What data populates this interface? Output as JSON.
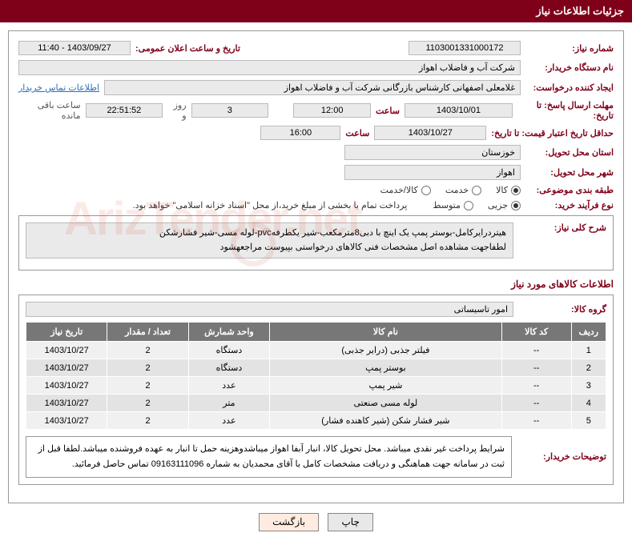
{
  "header": {
    "title": "جزئیات اطلاعات نیاز"
  },
  "fields": {
    "need_number_label": "شماره نیاز:",
    "need_number": "1103001331000172",
    "announce_date_label": "تاریخ و ساعت اعلان عمومی:",
    "announce_date": "1403/09/27 - 11:40",
    "buyer_org_label": "نام دستگاه خریدار:",
    "buyer_org": "شرکت آب و فاضلاب اهواز",
    "requester_label": "ایجاد کننده درخواست:",
    "requester": "غلامعلی اصفهانی کارشناس بازرگانی شرکت آب و فاضلاب اهواز",
    "buyer_contact_link": "اطلاعات تماس خریدار",
    "reply_deadline_label": "مهلت ارسال پاسخ: تا تاریخ:",
    "reply_deadline_date": "1403/10/01",
    "hour_label": "ساعت",
    "reply_deadline_time": "12:00",
    "countdown_days": "3",
    "days_and": "روز و",
    "countdown_time": "22:51:52",
    "remaining_label": "ساعت باقی مانده",
    "price_validity_label": "حداقل تاریخ اعتبار قیمت: تا تاریخ:",
    "price_validity_date": "1403/10/27",
    "price_validity_time": "16:00",
    "province_label": "استان محل تحویل:",
    "province": "خوزستان",
    "city_label": "شهر محل تحویل:",
    "city": "اهواز",
    "category_label": "طبقه بندی موضوعی:",
    "process_label": "نوع فرآیند خرید:",
    "payment_note": "پرداخت تمام یا بخشی از مبلغ خرید،از محل \"اسناد خزانه اسلامی\" خواهد بود.",
    "general_desc_label": "شرح کلی نیاز:",
    "general_desc_line1": "هیتردرایرکامل-بوستر پمپ یک اینچ با دبی8مترمکعب-شیر یکطرفهpvc-لوله مسی-شیر فشارشکن",
    "general_desc_line2": "لطفاجهت مشاهده اصل مشخصات فنی کالاهای درخواستی بپیوست مراجعهشود",
    "items_section": "اطلاعات کالاهای مورد نیاز",
    "group_label": "گروه کالا:",
    "group_value": "امور تاسیساتی",
    "buyer_notes_label": "توضیحات خریدار:",
    "buyer_notes": "شرایط پرداخت غیر نقدی میباشد. محل تحویل کالا، انبار آبفا اهواز میباشدوهزینه حمل تا انبار به عهده فروشنده میباشد.لطفا قبل از ثبت در سامانه جهت هماهنگی و دریافت مشخصات کامل با آقای  محمدیان به شماره 09163111096 تماس حاصل فرمائید."
  },
  "radios": {
    "category": {
      "options": [
        "کالا",
        "خدمت",
        "کالا/خدمت"
      ],
      "selected_index": 0
    },
    "process": {
      "options": [
        "جزیی",
        "متوسط"
      ],
      "selected_index": 0
    }
  },
  "table": {
    "headers": [
      "ردیف",
      "کد کالا",
      "نام کالا",
      "واحد شمارش",
      "تعداد / مقدار",
      "تاریخ نیاز"
    ],
    "rows": [
      [
        "1",
        "--",
        "فیلتر جذبی (درایر جذبی)",
        "دستگاه",
        "2",
        "1403/10/27"
      ],
      [
        "2",
        "--",
        "بوستر پمپ",
        "دستگاه",
        "2",
        "1403/10/27"
      ],
      [
        "3",
        "--",
        "شیر پمپ",
        "عدد",
        "2",
        "1403/10/27"
      ],
      [
        "4",
        "--",
        "لوله مسی صنعتی",
        "متر",
        "2",
        "1403/10/27"
      ],
      [
        "5",
        "--",
        "شیر فشار شکن (شیر کاهنده فشار)",
        "عدد",
        "2",
        "1403/10/27"
      ]
    ]
  },
  "buttons": {
    "print": "چاپ",
    "back": "بازگشت"
  },
  "watermark": "ArizTender.net",
  "colors": {
    "brand": "#7f0019",
    "field_bg": "#eaeaea",
    "th_bg": "#777777",
    "row_odd": "#f0f0f0",
    "row_even": "#e3e3e3",
    "link": "#2a6ebb"
  }
}
